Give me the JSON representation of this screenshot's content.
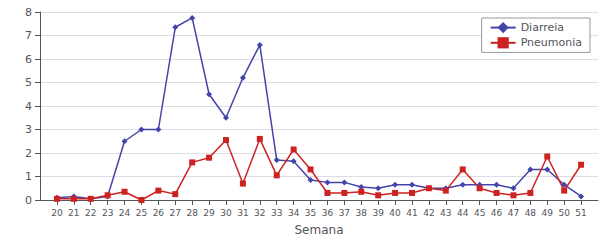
{
  "chart_data": {
    "type": "line",
    "x": [
      20,
      21,
      22,
      23,
      24,
      25,
      26,
      27,
      28,
      29,
      30,
      31,
      32,
      33,
      34,
      35,
      36,
      37,
      38,
      39,
      40,
      41,
      42,
      43,
      44,
      45,
      46,
      47,
      48,
      49,
      50,
      51
    ],
    "xlabel": "Semana",
    "xlim": [
      19,
      52
    ],
    "xticks": [
      20,
      21,
      22,
      23,
      24,
      25,
      26,
      27,
      28,
      29,
      30,
      31,
      32,
      33,
      34,
      35,
      36,
      37,
      38,
      39,
      40,
      41,
      42,
      43,
      44,
      45,
      46,
      47,
      48,
      49,
      50,
      51
    ],
    "ylim": [
      0,
      8
    ],
    "yticks": [
      0,
      1,
      2,
      3,
      4,
      5,
      6,
      7,
      8
    ],
    "grid": true,
    "legend": "upper right",
    "series": [
      {
        "name": "Diarreia",
        "color": "#4444AA",
        "marker": "diamond",
        "values": [
          0.1,
          0.15,
          0.05,
          0.15,
          2.5,
          3.0,
          3.0,
          7.35,
          7.75,
          4.5,
          3.5,
          5.2,
          6.6,
          1.7,
          1.65,
          0.85,
          0.75,
          0.75,
          0.55,
          0.5,
          0.65,
          0.65,
          0.5,
          0.5,
          0.65,
          0.65,
          0.65,
          0.5,
          1.3,
          1.3,
          0.65,
          0.15
        ]
      },
      {
        "name": "Pneumonia",
        "color": "#CC2222",
        "marker": "square",
        "values": [
          0.05,
          0.05,
          0.05,
          0.2,
          0.35,
          0.0,
          0.4,
          0.25,
          1.6,
          1.8,
          2.55,
          0.7,
          2.6,
          1.05,
          2.15,
          1.3,
          0.3,
          0.3,
          0.35,
          0.2,
          0.3,
          0.3,
          0.5,
          0.4,
          1.3,
          0.5,
          0.3,
          0.2,
          0.3,
          1.85,
          0.4,
          1.5
        ]
      }
    ]
  }
}
